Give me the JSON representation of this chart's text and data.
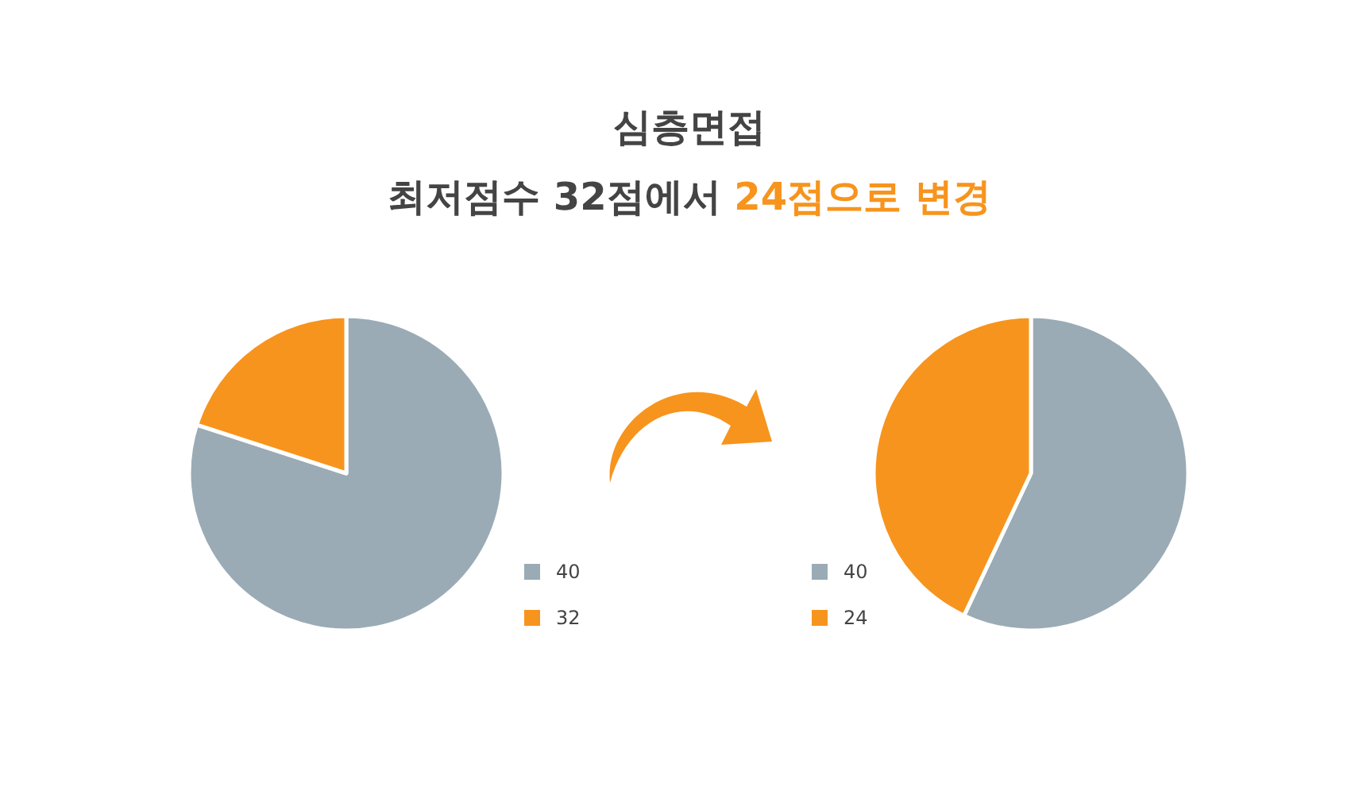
{
  "chart_data": [
    {
      "type": "pie",
      "title": "심층면접",
      "subtitle": "최저점수 32점에서 24점으로 변경",
      "categories": [
        "40",
        "32"
      ],
      "values": [
        80,
        20
      ],
      "colors": [
        "#9aabb5",
        "#f7941d"
      ],
      "legend": "bottom right"
    },
    {
      "type": "pie",
      "categories": [
        "40",
        "24"
      ],
      "values": [
        57,
        43
      ],
      "colors": [
        "#9aabb5",
        "#f7941d"
      ],
      "legend": "bottom left"
    }
  ]
}
